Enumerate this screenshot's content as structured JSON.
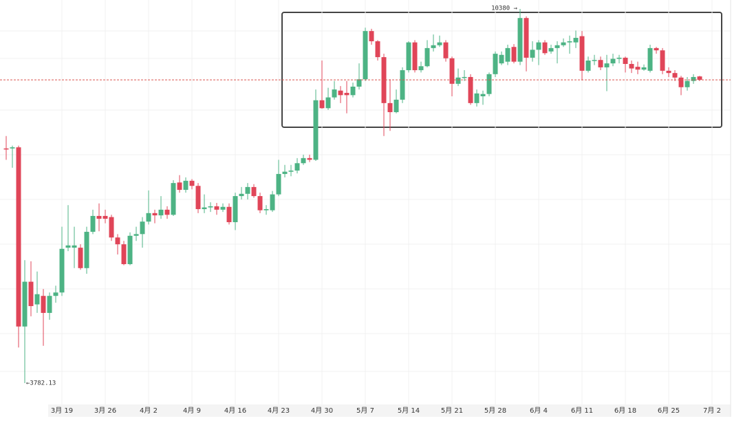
{
  "chart_data": {
    "type": "candlestick",
    "categories": [
      null,
      null,
      null,
      null,
      null,
      null,
      null,
      null,
      null,
      "3月 19",
      null,
      null,
      null,
      null,
      null,
      null,
      "3月 26",
      null,
      null,
      null,
      null,
      null,
      null,
      "4月 2",
      null,
      null,
      null,
      null,
      null,
      null,
      "4月 9",
      null,
      null,
      null,
      null,
      null,
      null,
      "4月 16",
      null,
      null,
      null,
      null,
      null,
      null,
      "4月 23",
      null,
      null,
      null,
      null,
      null,
      null,
      "4月 30",
      null,
      null,
      null,
      null,
      null,
      null,
      "5月 7",
      null,
      null,
      null,
      null,
      null,
      null,
      "5月 14",
      null,
      null,
      null,
      null,
      null,
      null,
      "5月 21",
      null,
      null,
      null,
      null,
      null,
      null,
      "5月 28",
      null,
      null,
      null,
      null,
      null,
      null,
      "6月 4",
      null,
      null,
      null,
      null,
      null,
      null,
      "6月 11",
      null,
      null,
      null,
      null,
      null,
      null,
      "6月 18",
      null,
      null,
      null,
      null,
      null,
      null,
      "6月 25",
      null,
      null,
      null,
      null,
      null,
      null,
      "7月 2"
    ],
    "open": [
      7920,
      7920,
      7940,
      4780,
      5570,
      5170,
      5320,
      5020,
      5320,
      5380,
      6170,
      6170,
      6170,
      5810,
      6450,
      6730,
      6730,
      6710,
      6350,
      6230,
      5880,
      6380,
      6410,
      6630,
      6780,
      6740,
      6840,
      6750,
      7320,
      7190,
      7350,
      7260,
      6850,
      6880,
      6900,
      6840,
      6890,
      6620,
      7080,
      7120,
      7240,
      7080,
      6830,
      6830,
      7110,
      7470,
      7510,
      7530,
      7660,
      7750,
      7720,
      8770,
      8630,
      8820,
      8940,
      8900,
      8860,
      9010,
      9140,
      9990,
      9810,
      9530,
      8720,
      8560,
      8780,
      9300,
      9790,
      9300,
      9370,
      9690,
      9740,
      9790,
      9510,
      9060,
      9170,
      9180,
      8720,
      8840,
      8880,
      9230,
      9420,
      9450,
      9710,
      9450,
      10220,
      9520,
      9660,
      9790,
      9630,
      9690,
      9740,
      9790,
      9790,
      9900,
      9290,
      9470,
      9480,
      9350,
      9420,
      9500,
      9520,
      9410,
      9360,
      9310,
      9290,
      9690,
      9650,
      9290,
      9250,
      9170,
      9000,
      9110,
      9190,
      null,
      null
    ],
    "high": [
      8140,
      7970,
      7970,
      5950,
      5930,
      5750,
      5440,
      5380,
      5500,
      6540,
      6920,
      6540,
      6230,
      6540,
      6840,
      6950,
      6840,
      6750,
      6410,
      6290,
      6440,
      6540,
      6710,
      7180,
      6840,
      7080,
      6900,
      7360,
      7450,
      7410,
      7380,
      7310,
      7110,
      6970,
      6960,
      6950,
      6950,
      7140,
      7240,
      7310,
      7290,
      7140,
      6920,
      7170,
      7720,
      7630,
      7630,
      7750,
      7810,
      7810,
      8960,
      9470,
      8990,
      9110,
      9020,
      9110,
      9080,
      9420,
      10050,
      10030,
      9830,
      9590,
      9140,
      8960,
      9350,
      9810,
      9830,
      9450,
      9830,
      9930,
      9910,
      9830,
      9540,
      9330,
      9300,
      9230,
      8960,
      8940,
      9260,
      9630,
      9630,
      9750,
      9760,
      10380,
      10250,
      9810,
      9830,
      9830,
      9750,
      9810,
      9860,
      9910,
      10000,
      9990,
      9540,
      9570,
      9540,
      9570,
      9590,
      9570,
      9540,
      9470,
      9450,
      9400,
      9750,
      9710,
      9690,
      9350,
      9300,
      9200,
      9180,
      9230,
      9200,
      null,
      null
    ],
    "low": [
      7720,
      7580,
      4410,
      3782.13,
      4960,
      5020,
      4440,
      4900,
      5200,
      5320,
      6110,
      5810,
      5780,
      5710,
      6410,
      6460,
      6600,
      6290,
      6050,
      5860,
      5860,
      6290,
      6170,
      6580,
      6600,
      6680,
      6680,
      6730,
      7140,
      7140,
      7200,
      6780,
      6780,
      6800,
      6750,
      6800,
      6580,
      6480,
      7020,
      7020,
      7050,
      6780,
      6750,
      6800,
      7080,
      7410,
      7430,
      7480,
      7630,
      7680,
      7700,
      8620,
      8600,
      8780,
      8720,
      8540,
      8820,
      8960,
      9110,
      9750,
      9470,
      8140,
      8230,
      8540,
      8720,
      9260,
      9260,
      9260,
      9350,
      9630,
      9710,
      9450,
      8840,
      9020,
      9110,
      8690,
      8660,
      8690,
      8840,
      9180,
      9390,
      9390,
      9420,
      9390,
      9280,
      9450,
      9390,
      9570,
      9590,
      9420,
      9710,
      9590,
      9690,
      9120,
      9260,
      9390,
      9300,
      8930,
      9370,
      9420,
      9260,
      9250,
      9230,
      9290,
      9260,
      9590,
      9230,
      9180,
      9110,
      8860,
      8940,
      9060,
      9110,
      null,
      null
    ],
    "close": [
      7910,
      7940,
      4780,
      5570,
      5140,
      5350,
      5020,
      5320,
      5380,
      6150,
      6210,
      6210,
      5810,
      6450,
      6730,
      6680,
      6680,
      6350,
      6230,
      5880,
      6380,
      6410,
      6630,
      6780,
      6740,
      6840,
      6750,
      7310,
      7190,
      7350,
      7260,
      6850,
      6880,
      6900,
      6840,
      6890,
      6620,
      7080,
      7120,
      7240,
      7080,
      6830,
      6850,
      7110,
      7470,
      7510,
      7530,
      7660,
      7750,
      7720,
      8770,
      8630,
      8820,
      8960,
      8860,
      8860,
      9010,
      9140,
      9990,
      9810,
      9530,
      8720,
      8560,
      8780,
      9300,
      9790,
      9300,
      9370,
      9690,
      9740,
      9790,
      9510,
      9060,
      9170,
      9180,
      8720,
      8890,
      8880,
      9230,
      9590,
      9570,
      9690,
      9450,
      10220,
      9520,
      9660,
      9790,
      9600,
      9690,
      9740,
      9790,
      9810,
      9870,
      9290,
      9470,
      9480,
      9350,
      9420,
      9500,
      9520,
      9410,
      9330,
      9310,
      9350,
      9690,
      9650,
      9290,
      9250,
      9170,
      9000,
      9110,
      9180,
      9130,
      null,
      null
    ],
    "up_color": "#4db384",
    "down_color": "#e04558",
    "last_line_color": "#d9534f",
    "annotations": [
      {
        "text": "10380 →"
      },
      {
        "text": "←3782.13"
      }
    ],
    "grid": true
  }
}
